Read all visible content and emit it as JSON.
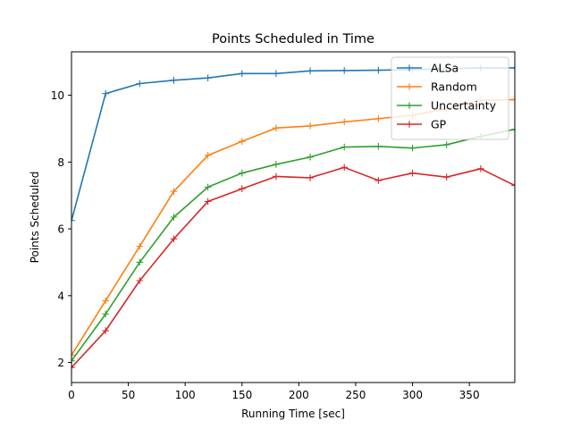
{
  "chart_data": {
    "type": "line",
    "title": "Points Scheduled in Time",
    "xlabel": "Running Time [sec]",
    "ylabel": "Points Scheduled",
    "xlim": [
      0,
      390
    ],
    "ylim": [
      1.4,
      11.3
    ],
    "xticks": [
      0,
      50,
      100,
      150,
      200,
      250,
      300,
      350
    ],
    "yticks": [
      2,
      4,
      6,
      8,
      10
    ],
    "grid": false,
    "legend_position": "top-right",
    "x": [
      0,
      30,
      60,
      90,
      120,
      150,
      180,
      210,
      240,
      270,
      300,
      330,
      360,
      390
    ],
    "series": [
      {
        "name": "ALSa",
        "color": "#1f77b4",
        "values": [
          6.25,
          10.05,
          10.35,
          10.45,
          10.52,
          10.65,
          10.65,
          10.73,
          10.74,
          10.75,
          10.77,
          10.79,
          10.82,
          10.82
        ]
      },
      {
        "name": "Random",
        "color": "#ff7f0e",
        "values": [
          2.22,
          3.85,
          5.48,
          7.12,
          8.2,
          8.62,
          9.02,
          9.08,
          9.2,
          9.3,
          9.4,
          9.6,
          9.85,
          9.87
        ]
      },
      {
        "name": "Uncertainty",
        "color": "#2ca02c",
        "values": [
          2.05,
          3.45,
          5.0,
          6.35,
          7.25,
          7.67,
          7.93,
          8.15,
          8.45,
          8.47,
          8.42,
          8.52,
          8.77,
          8.98
        ]
      },
      {
        "name": "GP",
        "color": "#d62728",
        "values": [
          1.85,
          2.95,
          4.45,
          5.7,
          6.82,
          7.2,
          7.57,
          7.53,
          7.84,
          7.45,
          7.67,
          7.55,
          7.8,
          7.3
        ]
      }
    ]
  }
}
